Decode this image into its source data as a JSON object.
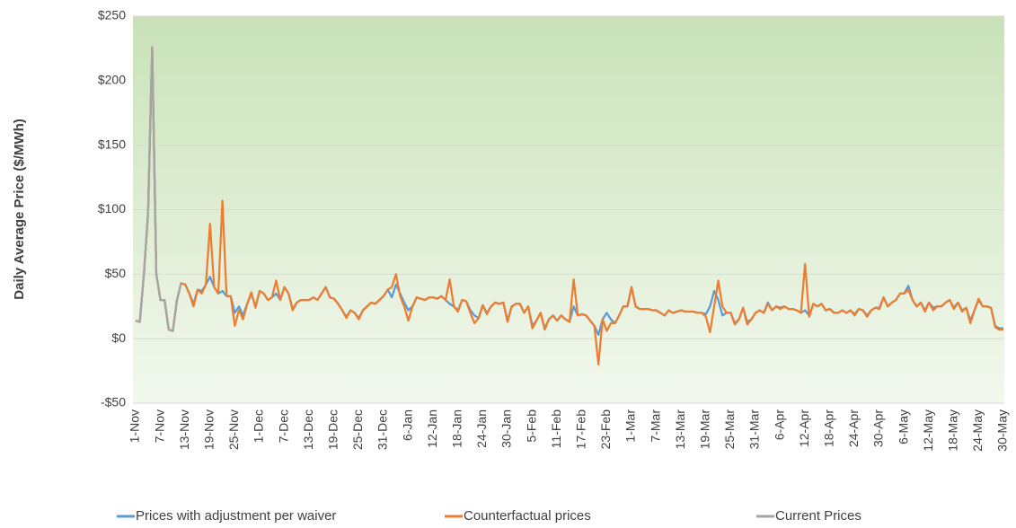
{
  "chart_data": {
    "type": "line",
    "y_label": "Daily Average Price ($/MWh)",
    "ylim": [
      -50,
      250
    ],
    "yticks": [
      {
        "value": -50,
        "label": "-$50"
      },
      {
        "value": 0,
        "label": "$0"
      },
      {
        "value": 50,
        "label": "$50"
      },
      {
        "value": 100,
        "label": "$100"
      },
      {
        "value": 150,
        "label": "$150"
      },
      {
        "value": 200,
        "label": "$200"
      },
      {
        "value": 250,
        "label": "$250"
      }
    ],
    "grid": true,
    "legend": "bottom",
    "categories": [
      "1-Nov",
      null,
      null,
      null,
      null,
      null,
      "7-Nov",
      null,
      null,
      null,
      null,
      null,
      "13-Nov",
      null,
      null,
      null,
      null,
      null,
      "19-Nov",
      null,
      null,
      null,
      null,
      null,
      "25-Nov",
      null,
      null,
      null,
      null,
      null,
      "1-Dec",
      null,
      null,
      null,
      null,
      null,
      "7-Dec",
      null,
      null,
      null,
      null,
      null,
      "13-Dec",
      null,
      null,
      null,
      null,
      null,
      "19-Dec",
      null,
      null,
      null,
      null,
      null,
      "25-Dec",
      null,
      null,
      null,
      null,
      null,
      "31-Dec",
      null,
      null,
      null,
      null,
      null,
      "6-Jan",
      null,
      null,
      null,
      null,
      null,
      "12-Jan",
      null,
      null,
      null,
      null,
      null,
      "18-Jan",
      null,
      null,
      null,
      null,
      null,
      "24-Jan",
      null,
      null,
      null,
      null,
      null,
      "30-Jan",
      null,
      null,
      null,
      null,
      null,
      "5-Feb",
      null,
      null,
      null,
      null,
      null,
      "11-Feb",
      null,
      null,
      null,
      null,
      null,
      "17-Feb",
      null,
      null,
      null,
      null,
      null,
      "23-Feb",
      null,
      null,
      null,
      null,
      null,
      "1-Mar",
      null,
      null,
      null,
      null,
      null,
      "7-Mar",
      null,
      null,
      null,
      null,
      null,
      "13-Mar",
      null,
      null,
      null,
      null,
      null,
      "19-Mar",
      null,
      null,
      null,
      null,
      null,
      "25-Mar",
      null,
      null,
      null,
      null,
      null,
      "31-Mar",
      null,
      null,
      null,
      null,
      null,
      "6-Apr",
      null,
      null,
      null,
      null,
      null,
      "12-Apr",
      null,
      null,
      null,
      null,
      null,
      "18-Apr",
      null,
      null,
      null,
      null,
      null,
      "24-Apr",
      null,
      null,
      null,
      null,
      null,
      "30-Apr",
      null,
      null,
      null,
      null,
      null,
      "6-May",
      null,
      null,
      null,
      null,
      null,
      "12-May",
      null,
      null,
      null,
      null,
      null,
      "18-May",
      null,
      null,
      null,
      null,
      null,
      "24-May",
      null,
      null,
      null,
      null,
      null,
      "30-May"
    ],
    "series": [
      {
        "name": "Prices with adjustment per waiver",
        "color": "#5b9bd5",
        "values": [
          14,
          13,
          50,
          97,
          226,
          50,
          30,
          30,
          7,
          6,
          30,
          43,
          42,
          35,
          27,
          38,
          37,
          42,
          48,
          40,
          35,
          37,
          33,
          33,
          20,
          25,
          18,
          27,
          35,
          25,
          37,
          35,
          30,
          32,
          35,
          30,
          40,
          35,
          23,
          28,
          30,
          30,
          30,
          32,
          30,
          35,
          40,
          32,
          31,
          27,
          22,
          17,
          22,
          20,
          16,
          22,
          25,
          28,
          27,
          30,
          33,
          38,
          32,
          42,
          35,
          28,
          22,
          25,
          32,
          31,
          30,
          32,
          32,
          31,
          33,
          30,
          27,
          25,
          22,
          30,
          29,
          22,
          18,
          16,
          26,
          20,
          25,
          28,
          27,
          28,
          14,
          25,
          27,
          27,
          20,
          25,
          10,
          14,
          20,
          8,
          15,
          18,
          14,
          18,
          15,
          13,
          25,
          18,
          19,
          18,
          14,
          10,
          3,
          15,
          20,
          15,
          12,
          18,
          25,
          25,
          40,
          25,
          23,
          23,
          23,
          22,
          22,
          20,
          18,
          22,
          20,
          21,
          22,
          21,
          21,
          21,
          20,
          20,
          19,
          25,
          37,
          30,
          18,
          20,
          20,
          12,
          15,
          24,
          13,
          15,
          20,
          22,
          20,
          28,
          22,
          25,
          24,
          25,
          23,
          23,
          22,
          20,
          22,
          18,
          27,
          25,
          27,
          22,
          23,
          20,
          20,
          22,
          20,
          22,
          19,
          23,
          22,
          18,
          22,
          24,
          24,
          32,
          25,
          28,
          30,
          35,
          35,
          41,
          30,
          25,
          28,
          22,
          28,
          24,
          25,
          25,
          28,
          30,
          24,
          28,
          22,
          24,
          14,
          22,
          30,
          25,
          25,
          24,
          10,
          8,
          8
        ]
      },
      {
        "name": "Counterfactual prices",
        "color": "#ed7d31",
        "values": [
          14,
          13,
          50,
          97,
          226,
          50,
          30,
          30,
          7,
          6,
          30,
          43,
          42,
          35,
          25,
          38,
          35,
          42,
          89,
          40,
          35,
          107,
          33,
          33,
          10,
          22,
          15,
          27,
          36,
          24,
          37,
          35,
          30,
          32,
          45,
          30,
          40,
          35,
          22,
          28,
          30,
          30,
          30,
          32,
          30,
          35,
          40,
          32,
          31,
          27,
          22,
          16,
          22,
          20,
          15,
          22,
          25,
          28,
          27,
          30,
          33,
          38,
          40,
          50,
          33,
          25,
          14,
          25,
          32,
          31,
          30,
          32,
          32,
          31,
          33,
          30,
          46,
          25,
          21,
          30,
          29,
          20,
          12,
          16,
          26,
          19,
          25,
          28,
          27,
          28,
          13,
          25,
          27,
          27,
          20,
          25,
          8,
          14,
          20,
          7,
          15,
          18,
          14,
          18,
          15,
          13,
          46,
          18,
          19,
          18,
          14,
          10,
          -20,
          15,
          6,
          12,
          12,
          18,
          25,
          25,
          40,
          25,
          23,
          23,
          23,
          22,
          22,
          20,
          18,
          22,
          20,
          21,
          22,
          21,
          21,
          21,
          20,
          20,
          17,
          5,
          25,
          45,
          25,
          20,
          20,
          11,
          15,
          24,
          11,
          15,
          20,
          22,
          20,
          27,
          22,
          25,
          23,
          25,
          23,
          23,
          22,
          20,
          58,
          17,
          27,
          25,
          27,
          22,
          23,
          20,
          20,
          22,
          20,
          22,
          18,
          23,
          22,
          17,
          22,
          24,
          23,
          32,
          25,
          28,
          30,
          35,
          35,
          38,
          30,
          25,
          28,
          21,
          28,
          22,
          25,
          25,
          28,
          30,
          23,
          28,
          21,
          24,
          12,
          22,
          31,
          25,
          25,
          24,
          9,
          7,
          7
        ]
      },
      {
        "name": "Current Prices",
        "color": "#a5a5a5",
        "values": [
          14,
          13,
          50,
          97,
          226,
          50,
          30,
          30,
          7,
          6,
          30,
          43,
          null,
          null,
          null,
          null,
          null,
          null,
          null,
          null,
          null,
          null,
          null,
          null,
          null,
          null,
          null,
          null,
          null,
          null,
          null,
          null,
          null,
          null,
          null,
          null,
          null,
          null,
          null,
          null,
          null,
          null,
          null,
          null,
          null,
          null,
          null,
          null,
          null,
          null,
          null,
          null,
          null,
          null,
          null,
          null,
          null,
          null,
          null,
          null,
          null,
          null,
          null,
          null,
          null,
          null,
          null,
          null,
          null,
          null,
          null,
          null,
          null,
          null,
          null,
          null,
          null,
          null,
          null,
          null,
          null,
          null,
          null,
          null,
          null,
          null,
          null,
          null,
          null,
          null,
          null,
          null,
          null,
          null,
          null,
          null,
          null,
          null,
          null,
          null,
          null,
          null,
          null,
          null,
          null,
          null,
          null,
          null,
          null,
          null,
          null,
          null,
          null,
          null,
          null,
          null,
          null,
          null,
          null,
          null,
          null,
          null,
          null,
          null,
          null,
          null,
          null,
          null,
          null,
          null,
          null,
          null,
          null,
          null,
          null,
          null,
          null,
          null,
          null,
          null,
          null,
          null,
          null,
          null,
          null,
          null,
          null,
          null,
          null,
          null,
          null,
          null,
          null,
          null,
          null,
          null,
          null,
          null,
          null,
          null,
          null,
          null,
          null,
          null,
          null,
          null,
          null,
          null,
          null,
          null,
          null,
          null,
          null,
          null,
          null,
          null,
          null,
          null,
          null,
          null,
          null,
          null,
          null,
          null,
          null,
          null,
          null,
          null,
          null,
          null,
          null,
          null,
          null,
          null,
          null,
          null,
          null,
          null,
          null,
          null,
          null,
          null,
          null,
          null,
          null,
          null,
          null,
          null,
          null,
          null,
          null
        ]
      }
    ]
  }
}
